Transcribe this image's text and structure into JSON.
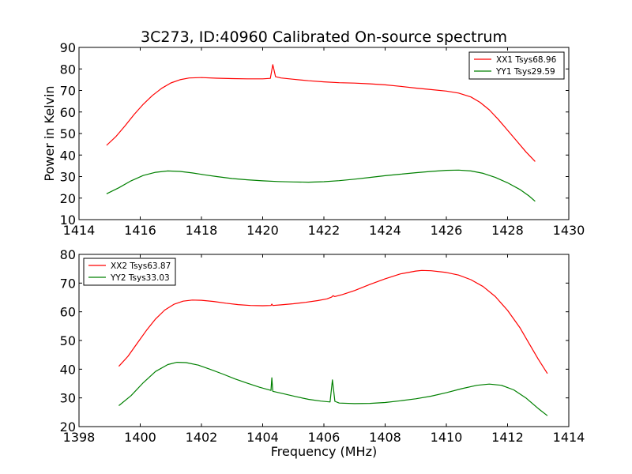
{
  "figure": {
    "title": "3C273, ID:40960 Calibrated On-source spectrum",
    "xlabel": "Frequency (MHz)",
    "ylabel": "Power in Kelvin"
  },
  "chart_data": [
    {
      "type": "line",
      "title": "3C273, ID:40960 Calibrated On-source spectrum",
      "xlabel": "",
      "ylabel": "Power in Kelvin",
      "xlim": [
        1414,
        1430
      ],
      "ylim": [
        10,
        90
      ],
      "xticks": [
        1414,
        1416,
        1418,
        1420,
        1422,
        1424,
        1426,
        1428,
        1430
      ],
      "yticks": [
        10,
        20,
        30,
        40,
        50,
        60,
        70,
        80,
        90
      ],
      "legend_position": "top-right",
      "series": [
        {
          "name": "XX1 Tsys68.96",
          "color": "#ff0000",
          "points": [
            [
              1414.9,
              44.5
            ],
            [
              1415.2,
              48.5
            ],
            [
              1415.5,
              53.5
            ],
            [
              1415.8,
              58.8
            ],
            [
              1416.1,
              63.6
            ],
            [
              1416.4,
              67.7
            ],
            [
              1416.7,
              71
            ],
            [
              1417.0,
              73.5
            ],
            [
              1417.3,
              75
            ],
            [
              1417.6,
              75.8
            ],
            [
              1418.0,
              76
            ],
            [
              1418.5,
              75.7
            ],
            [
              1419.0,
              75.5
            ],
            [
              1419.5,
              75.4
            ],
            [
              1420.0,
              75.4
            ],
            [
              1420.25,
              75.6
            ],
            [
              1420.33,
              82
            ],
            [
              1420.42,
              76.4
            ],
            [
              1420.6,
              75.8
            ],
            [
              1421.0,
              75.2
            ],
            [
              1421.5,
              74.5
            ],
            [
              1422.0,
              74
            ],
            [
              1422.5,
              73.6
            ],
            [
              1423.0,
              73.4
            ],
            [
              1423.5,
              73.1
            ],
            [
              1424.0,
              72.6
            ],
            [
              1424.5,
              71.9
            ],
            [
              1425.0,
              71.1
            ],
            [
              1425.5,
              70.4
            ],
            [
              1426.0,
              69.7
            ],
            [
              1426.4,
              68.8
            ],
            [
              1426.8,
              67
            ],
            [
              1427.1,
              64.5
            ],
            [
              1427.4,
              61
            ],
            [
              1427.7,
              56.5
            ],
            [
              1428.0,
              51.5
            ],
            [
              1428.3,
              46.5
            ],
            [
              1428.6,
              41.5
            ],
            [
              1428.9,
              37
            ]
          ]
        },
        {
          "name": "YY1 Tsys29.59",
          "color": "#008000",
          "points": [
            [
              1414.9,
              22
            ],
            [
              1415.3,
              24.8
            ],
            [
              1415.7,
              28
            ],
            [
              1416.1,
              30.5
            ],
            [
              1416.5,
              32
            ],
            [
              1416.9,
              32.6
            ],
            [
              1417.3,
              32.4
            ],
            [
              1417.7,
              31.7
            ],
            [
              1418.1,
              30.8
            ],
            [
              1418.5,
              30
            ],
            [
              1419.0,
              29.1
            ],
            [
              1419.5,
              28.5
            ],
            [
              1420.0,
              28
            ],
            [
              1420.5,
              27.7
            ],
            [
              1421.0,
              27.5
            ],
            [
              1421.5,
              27.4
            ],
            [
              1422.0,
              27.6
            ],
            [
              1422.5,
              28.1
            ],
            [
              1423.0,
              28.8
            ],
            [
              1423.5,
              29.6
            ],
            [
              1424.0,
              30.4
            ],
            [
              1424.5,
              31.1
            ],
            [
              1425.0,
              31.8
            ],
            [
              1425.5,
              32.4
            ],
            [
              1426.0,
              32.9
            ],
            [
              1426.4,
              33
            ],
            [
              1426.8,
              32.6
            ],
            [
              1427.2,
              31.5
            ],
            [
              1427.6,
              29.6
            ],
            [
              1428.0,
              27.1
            ],
            [
              1428.4,
              24
            ],
            [
              1428.7,
              21
            ],
            [
              1428.9,
              18.5
            ]
          ]
        }
      ]
    },
    {
      "type": "line",
      "title": "",
      "xlabel": "Frequency (MHz)",
      "ylabel": "",
      "xlim": [
        1398,
        1414
      ],
      "ylim": [
        20,
        80
      ],
      "xticks": [
        1398,
        1400,
        1402,
        1404,
        1406,
        1408,
        1410,
        1412,
        1414
      ],
      "yticks": [
        20,
        30,
        40,
        50,
        60,
        70,
        80
      ],
      "legend_position": "top-left",
      "series": [
        {
          "name": "XX2 Tsys63.87",
          "color": "#ff0000",
          "points": [
            [
              1399.3,
              41
            ],
            [
              1399.6,
              44.5
            ],
            [
              1399.9,
              49
            ],
            [
              1400.2,
              53.5
            ],
            [
              1400.5,
              57.5
            ],
            [
              1400.8,
              60.6
            ],
            [
              1401.1,
              62.6
            ],
            [
              1401.4,
              63.7
            ],
            [
              1401.7,
              64.1
            ],
            [
              1402.0,
              64
            ],
            [
              1402.4,
              63.6
            ],
            [
              1402.8,
              63
            ],
            [
              1403.2,
              62.5
            ],
            [
              1403.6,
              62.2
            ],
            [
              1404.0,
              62.1
            ],
            [
              1404.27,
              62.2
            ],
            [
              1404.3,
              62.7
            ],
            [
              1404.33,
              62.2
            ],
            [
              1404.6,
              62.4
            ],
            [
              1405.0,
              62.8
            ],
            [
              1405.4,
              63.3
            ],
            [
              1405.8,
              63.9
            ],
            [
              1406.1,
              64.5
            ],
            [
              1406.25,
              65.1
            ],
            [
              1406.3,
              65.6
            ],
            [
              1406.35,
              65.3
            ],
            [
              1406.6,
              66
            ],
            [
              1407.0,
              67.4
            ],
            [
              1407.5,
              69.5
            ],
            [
              1408.0,
              71.5
            ],
            [
              1408.5,
              73.2
            ],
            [
              1409.0,
              74.2
            ],
            [
              1409.2,
              74.4
            ],
            [
              1409.5,
              74.3
            ],
            [
              1410.0,
              73.7
            ],
            [
              1410.4,
              72.8
            ],
            [
              1410.8,
              71.2
            ],
            [
              1411.2,
              68.8
            ],
            [
              1411.6,
              65.3
            ],
            [
              1412.0,
              60.5
            ],
            [
              1412.4,
              54.5
            ],
            [
              1412.7,
              49
            ],
            [
              1413.0,
              43.5
            ],
            [
              1413.3,
              38.5
            ]
          ]
        },
        {
          "name": "YY2 Tsys33.03",
          "color": "#008000",
          "points": [
            [
              1399.3,
              27.3
            ],
            [
              1399.7,
              30.8
            ],
            [
              1400.1,
              35.3
            ],
            [
              1400.5,
              39.2
            ],
            [
              1400.9,
              41.6
            ],
            [
              1401.2,
              42.4
            ],
            [
              1401.5,
              42.3
            ],
            [
              1401.9,
              41.4
            ],
            [
              1402.3,
              39.9
            ],
            [
              1402.7,
              38.3
            ],
            [
              1403.1,
              36.6
            ],
            [
              1403.5,
              35.1
            ],
            [
              1403.9,
              33.7
            ],
            [
              1404.27,
              32.6
            ],
            [
              1404.3,
              37
            ],
            [
              1404.33,
              32.3
            ],
            [
              1404.7,
              31.4
            ],
            [
              1405.1,
              30.4
            ],
            [
              1405.5,
              29.5
            ],
            [
              1405.9,
              28.9
            ],
            [
              1406.2,
              28.6
            ],
            [
              1406.28,
              36.3
            ],
            [
              1406.36,
              28.8
            ],
            [
              1406.5,
              28.2
            ],
            [
              1407.0,
              28
            ],
            [
              1407.5,
              28.1
            ],
            [
              1408.0,
              28.4
            ],
            [
              1408.5,
              29
            ],
            [
              1409.0,
              29.7
            ],
            [
              1409.5,
              30.6
            ],
            [
              1410.0,
              31.8
            ],
            [
              1410.5,
              33.2
            ],
            [
              1411.0,
              34.4
            ],
            [
              1411.4,
              34.8
            ],
            [
              1411.8,
              34.4
            ],
            [
              1412.2,
              32.8
            ],
            [
              1412.6,
              30
            ],
            [
              1413.0,
              26.3
            ],
            [
              1413.3,
              23.8
            ]
          ]
        }
      ]
    }
  ]
}
